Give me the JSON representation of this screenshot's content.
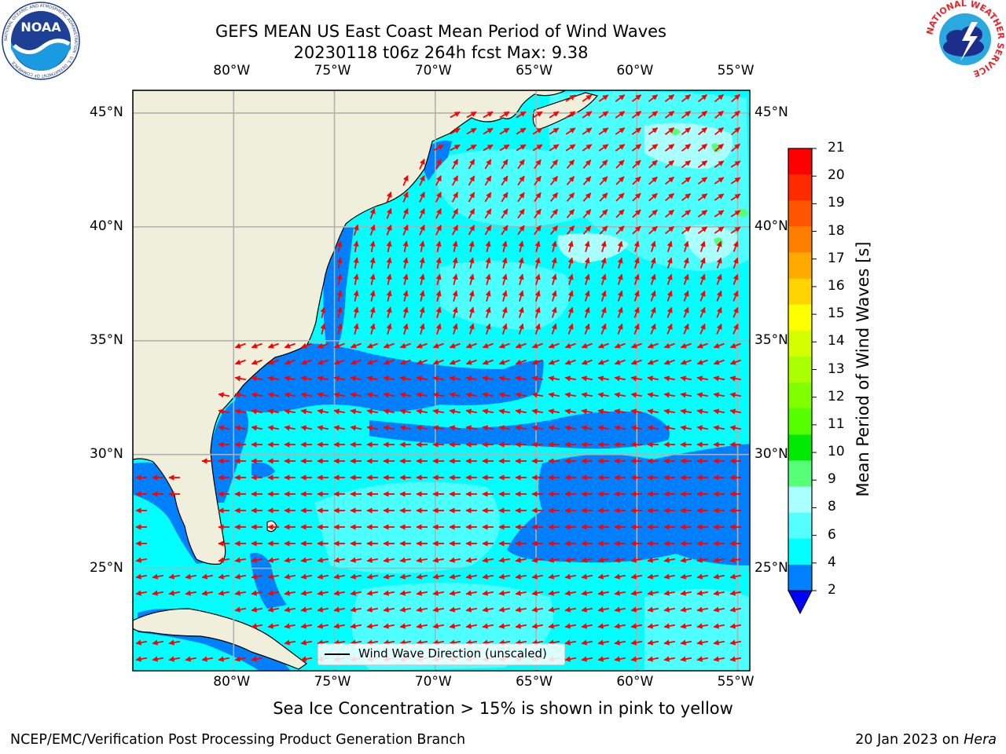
{
  "header": {
    "title_line1": "GEFS MEAN US East Coast Mean Period of Wind Waves",
    "title_line2": "20230118 t06z 264h fcst   Max: 9.38"
  },
  "logos": {
    "left": {
      "name": "noaa-logo",
      "text": "NOAA",
      "ring_text": "NATIONAL OCEANIC AND ATMOSPHERIC ADMINISTRATION · U.S. DEPARTMENT OF COMMERCE"
    },
    "right": {
      "name": "nws-logo",
      "ring_text": "NATIONAL WEATHER SERVICE"
    }
  },
  "map": {
    "lon_labels": [
      "80°W",
      "75°W",
      "70°W",
      "65°W",
      "60°W",
      "55°W"
    ],
    "lat_labels": [
      "45°N",
      "40°N",
      "35°N",
      "30°N",
      "25°N"
    ],
    "lon_range": [
      -85,
      -54.4
    ],
    "lat_range": [
      20.5,
      46
    ],
    "legend_label": "Wind Wave Direction (unscaled)",
    "colors": {
      "land": "#efefdc",
      "arrow": "#ff0000",
      "grid": "#b0b0b0"
    }
  },
  "colorbar": {
    "label": "Mean Period of Wind Waves [s]",
    "ticks": [
      "21",
      "20",
      "19",
      "18",
      "17",
      "16",
      "15",
      "14",
      "13",
      "12",
      "11",
      "10",
      "9",
      "8",
      "6",
      "4",
      "2"
    ],
    "colors_top_to_bottom": [
      "#ff0000",
      "#ff2a00",
      "#ff5500",
      "#ff8000",
      "#ffaa00",
      "#ffd400",
      "#ffff00",
      "#d5ff00",
      "#aaff00",
      "#80ff00",
      "#55ff00",
      "#00e900",
      "#55ff77",
      "#aaffff",
      "#55ffff",
      "#00ffff",
      "#0080ff",
      "#0000ff"
    ]
  },
  "footer": {
    "note": "Sea Ice Concentration > 15% is shown in pink to yellow",
    "credit": "NCEP/EMC/Verification Post Processing Product Generation Branch",
    "date": "20 Jan 2023 on ",
    "machine": "Hera"
  }
}
